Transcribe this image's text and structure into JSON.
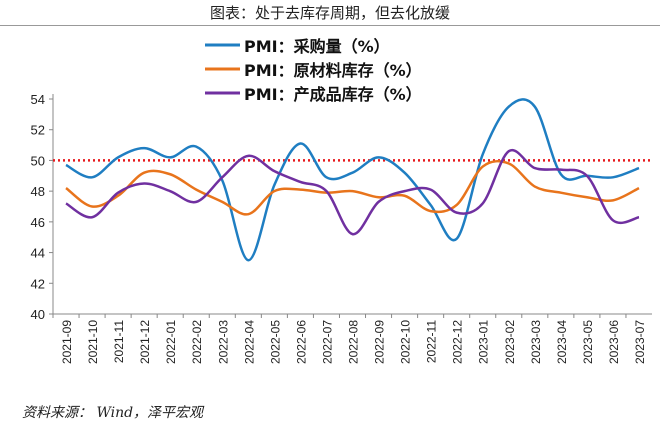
{
  "title": "图表：处于去库存周期，但去化放缓",
  "source": "资料来源： Wind，泽平宏观",
  "chart_data": {
    "type": "line",
    "title": "图表：处于去库存周期，但去化放缓",
    "xlabel": "",
    "ylabel": "",
    "ylim": [
      40,
      54
    ],
    "yticks": [
      40,
      42,
      44,
      46,
      48,
      50,
      52,
      54
    ],
    "grid": false,
    "legend": "top-center",
    "reference_line": {
      "y": 50,
      "color": "#e8191c",
      "style": "dotted"
    },
    "categories": [
      "2021-09",
      "2021-10",
      "2021-11",
      "2021-12",
      "2022-01",
      "2022-02",
      "2022-03",
      "2022-04",
      "2022-05",
      "2022-06",
      "2022-07",
      "2022-08",
      "2022-09",
      "2022-10",
      "2022-11",
      "2022-12",
      "2023-01",
      "2023-02",
      "2023-03",
      "2023-04",
      "2023-05",
      "2023-06",
      "2023-07"
    ],
    "series": [
      {
        "name": "PMI：采购量（%）",
        "color": "#1f7ec2",
        "values": [
          49.7,
          48.9,
          50.2,
          50.8,
          50.2,
          50.9,
          48.7,
          43.5,
          48.4,
          51.1,
          48.9,
          49.2,
          50.2,
          49.2,
          47.1,
          44.9,
          50.4,
          53.5,
          53.5,
          49.1,
          49.0,
          48.9,
          49.5
        ]
      },
      {
        "name": "PMI：原材料库存（%）",
        "color": "#e8741c",
        "values": [
          48.2,
          47.0,
          47.7,
          49.2,
          49.1,
          48.1,
          47.3,
          46.5,
          48.0,
          48.1,
          47.9,
          48.0,
          47.6,
          47.7,
          46.7,
          47.1,
          49.6,
          49.8,
          48.3,
          47.9,
          47.6,
          47.4,
          48.2
        ]
      },
      {
        "name": "PMI：产成品库存（%）",
        "color": "#7030a0",
        "values": [
          47.2,
          46.3,
          47.9,
          48.5,
          48.0,
          47.3,
          48.9,
          50.3,
          49.3,
          48.6,
          48.0,
          45.2,
          47.3,
          48.0,
          48.1,
          46.6,
          47.2,
          50.6,
          49.5,
          49.4,
          49.0,
          46.1,
          46.3
        ]
      }
    ]
  }
}
